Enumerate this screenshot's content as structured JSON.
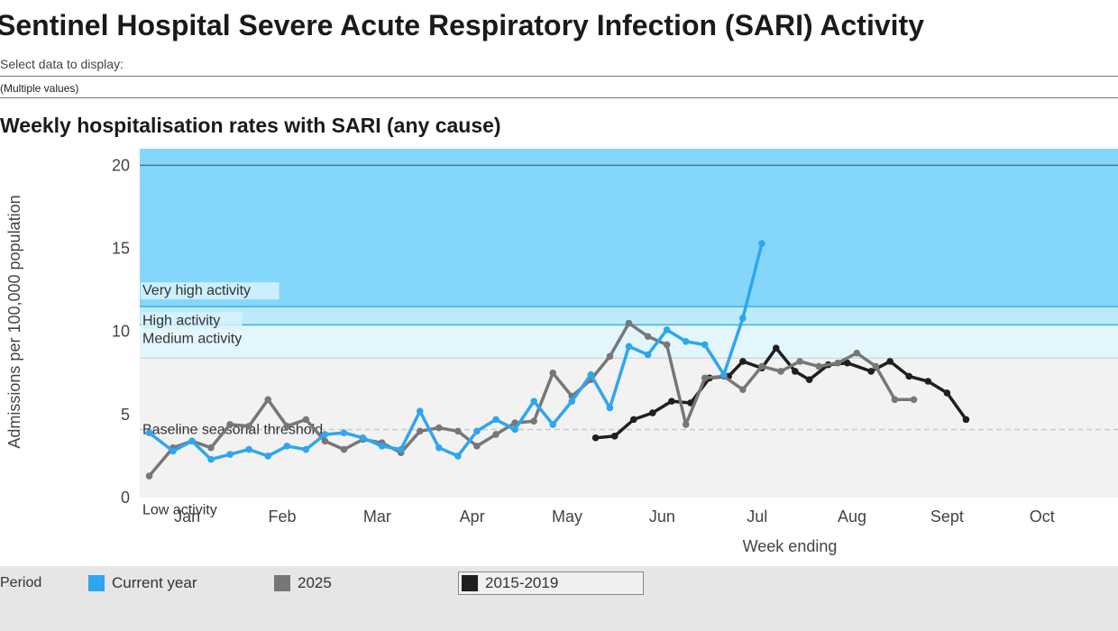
{
  "page": {
    "title": "Sentinel Hospital Severe Acute Respiratory Infection (SARI) Activity",
    "select_label": "Select data to display:",
    "select_value": "(Multiple values)"
  },
  "chart_data": {
    "type": "line",
    "title": "Weekly hospitalisation rates with SARI (any cause)",
    "xlabel": "Week ending",
    "ylabel": "Admissions per 100,000 population",
    "ylim": [
      0,
      20
    ],
    "yticks": [
      0,
      5,
      10,
      15,
      20
    ],
    "xlim": [
      0.5,
      10.8
    ],
    "xticks": [
      {
        "label": "Jan",
        "x": 1
      },
      {
        "label": "Feb",
        "x": 2
      },
      {
        "label": "Mar",
        "x": 3
      },
      {
        "label": "Apr",
        "x": 4
      },
      {
        "label": "May",
        "x": 5
      },
      {
        "label": "Jun",
        "x": 6
      },
      {
        "label": "Jul",
        "x": 7
      },
      {
        "label": "Aug",
        "x": 8
      },
      {
        "label": "Sept",
        "x": 9
      },
      {
        "label": "Oct",
        "x": 10
      }
    ],
    "thresholds": [
      {
        "name": "Baseline seasonal threshold",
        "value": 4.1
      },
      {
        "name": "Low activity",
        "from": 0,
        "to": 8.4,
        "color": "#f2f2f2"
      },
      {
        "name": "Medium activity",
        "from": 8.4,
        "to": 10.4,
        "color": "#e4f6fd"
      },
      {
        "name": "High activity",
        "from": 10.4,
        "to": 11.5,
        "color": "#bdeafb"
      },
      {
        "name": "Very high activity",
        "from": 11.5,
        "to": 20,
        "color": "#85d6fb"
      }
    ],
    "series": [
      {
        "name": "2015-2019",
        "color": "#1f1f1f",
        "points": [
          [
            5.3,
            3.6
          ],
          [
            5.5,
            3.7
          ],
          [
            5.7,
            4.7
          ],
          [
            5.9,
            5.1
          ],
          [
            6.1,
            5.8
          ],
          [
            6.3,
            5.7
          ],
          [
            6.5,
            7.2
          ],
          [
            6.7,
            7.3
          ],
          [
            6.85,
            8.2
          ],
          [
            7.05,
            7.8
          ],
          [
            7.2,
            9.0
          ],
          [
            7.4,
            7.6
          ],
          [
            7.55,
            7.1
          ],
          [
            7.75,
            8.0
          ],
          [
            7.95,
            8.1
          ],
          [
            8.2,
            7.6
          ],
          [
            8.4,
            8.2
          ],
          [
            8.6,
            7.3
          ],
          [
            8.8,
            7.0
          ],
          [
            9.0,
            6.3
          ],
          [
            9.2,
            4.7
          ]
        ]
      },
      {
        "name": "2025",
        "color": "#777777",
        "points": [
          [
            0.6,
            1.3
          ],
          [
            0.85,
            3.0
          ],
          [
            1.05,
            3.4
          ],
          [
            1.25,
            3.0
          ],
          [
            1.45,
            4.4
          ],
          [
            1.65,
            4.3
          ],
          [
            1.85,
            5.9
          ],
          [
            2.05,
            4.3
          ],
          [
            2.25,
            4.7
          ],
          [
            2.45,
            3.4
          ],
          [
            2.65,
            2.9
          ],
          [
            2.85,
            3.5
          ],
          [
            3.05,
            3.3
          ],
          [
            3.25,
            2.7
          ],
          [
            3.45,
            4.0
          ],
          [
            3.65,
            4.2
          ],
          [
            3.85,
            4.0
          ],
          [
            4.05,
            3.1
          ],
          [
            4.25,
            3.8
          ],
          [
            4.45,
            4.5
          ],
          [
            4.65,
            4.6
          ],
          [
            4.85,
            7.5
          ],
          [
            5.05,
            6.1
          ],
          [
            5.25,
            7.1
          ],
          [
            5.45,
            8.5
          ],
          [
            5.65,
            10.5
          ],
          [
            5.85,
            9.7
          ],
          [
            6.05,
            9.2
          ],
          [
            6.25,
            4.4
          ],
          [
            6.45,
            7.2
          ],
          [
            6.65,
            7.3
          ],
          [
            6.85,
            6.5
          ],
          [
            7.05,
            7.9
          ],
          [
            7.25,
            7.6
          ],
          [
            7.45,
            8.2
          ],
          [
            7.65,
            7.9
          ],
          [
            7.85,
            8.1
          ],
          [
            8.05,
            8.7
          ],
          [
            8.25,
            7.9
          ],
          [
            8.45,
            5.9
          ],
          [
            8.65,
            5.9
          ]
        ]
      },
      {
        "name": "Current year",
        "color": "#2ea6ef",
        "points": [
          [
            0.6,
            3.9
          ],
          [
            0.85,
            2.8
          ],
          [
            1.05,
            3.4
          ],
          [
            1.25,
            2.3
          ],
          [
            1.45,
            2.6
          ],
          [
            1.65,
            2.9
          ],
          [
            1.85,
            2.5
          ],
          [
            2.05,
            3.1
          ],
          [
            2.25,
            2.9
          ],
          [
            2.45,
            3.8
          ],
          [
            2.65,
            3.9
          ],
          [
            2.85,
            3.6
          ],
          [
            3.05,
            3.1
          ],
          [
            3.25,
            2.9
          ],
          [
            3.45,
            5.2
          ],
          [
            3.65,
            3.0
          ],
          [
            3.85,
            2.5
          ],
          [
            4.05,
            4.0
          ],
          [
            4.25,
            4.7
          ],
          [
            4.45,
            4.1
          ],
          [
            4.65,
            5.8
          ],
          [
            4.85,
            4.4
          ],
          [
            5.05,
            5.8
          ],
          [
            5.25,
            7.4
          ],
          [
            5.45,
            5.4
          ],
          [
            5.65,
            9.1
          ],
          [
            5.85,
            8.6
          ],
          [
            6.05,
            10.1
          ],
          [
            6.25,
            9.4
          ],
          [
            6.45,
            9.2
          ],
          [
            6.65,
            7.4
          ],
          [
            6.85,
            10.8
          ],
          [
            7.05,
            15.3
          ]
        ]
      }
    ],
    "legend": {
      "title": "Period",
      "items": [
        {
          "label": "Current year",
          "color": "#2ea6ef"
        },
        {
          "label": "2025",
          "color": "#777777"
        },
        {
          "label": "2015-2019",
          "color": "#1f1f1f",
          "selected": true
        }
      ]
    }
  }
}
